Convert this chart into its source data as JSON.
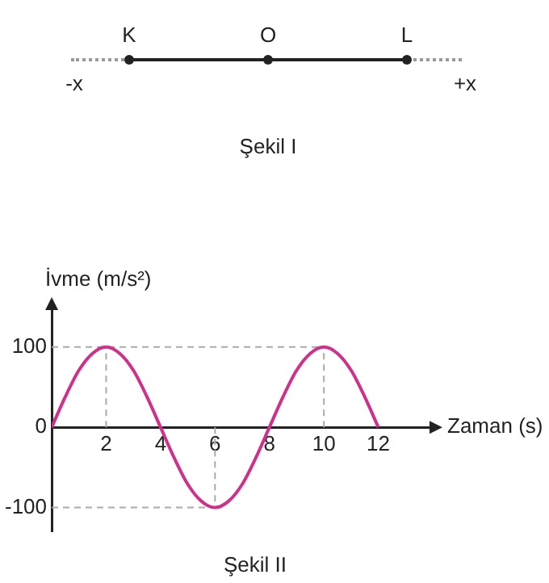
{
  "chart_data": {
    "type": "line",
    "xlabel": "Zaman (s)",
    "ylabel": "İvme (m/s²)",
    "x": [
      0,
      0.5,
      1,
      1.5,
      2,
      2.5,
      3,
      3.5,
      4,
      4.5,
      5,
      5.5,
      6,
      6.5,
      7,
      7.5,
      8,
      8.5,
      9,
      9.5,
      10,
      10.5,
      11,
      11.5,
      12
    ],
    "series": [
      {
        "color": "#d12f8c",
        "values": [
          0,
          38,
          71,
          92,
          100,
          92,
          71,
          38,
          0,
          -38,
          -71,
          -92,
          -100,
          -92,
          -71,
          -38,
          0,
          38,
          71,
          92,
          100,
          92,
          71,
          38,
          0
        ]
      }
    ],
    "xlim": [
      0,
      14
    ],
    "xticks": [
      2,
      4,
      6,
      8,
      10,
      12
    ],
    "ylim": [
      -130,
      150
    ],
    "yticks": [
      -100,
      0,
      100
    ],
    "ref_lines": [
      {
        "axis": "x",
        "value": 2,
        "line_style": "dashed",
        "color": "#aaaaaa"
      },
      {
        "axis": "x",
        "value": 6,
        "line_style": "dashed",
        "color": "#aaaaaa"
      },
      {
        "axis": "x",
        "value": 10,
        "line_style": "dashed",
        "color": "#aaaaaa"
      },
      {
        "axis": "y",
        "value": 100,
        "line_style": "dashed",
        "color": "#aaaaaa"
      },
      {
        "axis": "y",
        "value": -100,
        "line_style": "dashed",
        "color": "#aaaaaa"
      }
    ],
    "grid": false,
    "legend": false,
    "marker": "none",
    "line_style": "solid",
    "annotations": [
      "K",
      "O",
      "L",
      "-x",
      "+x",
      "Şekil I",
      "Şekil II"
    ]
  }
}
